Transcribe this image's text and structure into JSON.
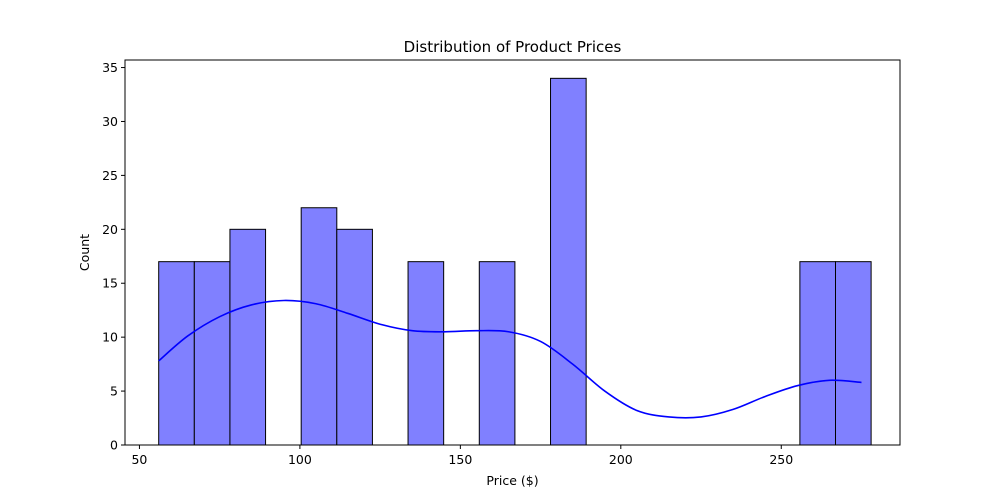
{
  "chart_data": {
    "type": "bar",
    "subtype": "histogram",
    "title": "Distribution of Product Prices",
    "xlabel": "Price ($)",
    "ylabel": "Count",
    "xlim": [
      45.5,
      287
    ],
    "ylim": [
      0,
      35.7
    ],
    "xticks": [
      50,
      100,
      150,
      200,
      250
    ],
    "yticks": [
      0,
      5,
      10,
      15,
      20,
      25,
      30,
      35
    ],
    "grid": false,
    "bins": [
      {
        "x0": 56.0,
        "x1": 67.1,
        "count": 17
      },
      {
        "x0": 67.1,
        "x1": 78.2,
        "count": 17
      },
      {
        "x0": 78.2,
        "x1": 89.3,
        "count": 20
      },
      {
        "x0": 89.3,
        "x1": 100.4,
        "count": 0
      },
      {
        "x0": 100.4,
        "x1": 111.5,
        "count": 22
      },
      {
        "x0": 111.5,
        "x1": 122.6,
        "count": 20
      },
      {
        "x0": 122.6,
        "x1": 133.7,
        "count": 0
      },
      {
        "x0": 133.7,
        "x1": 144.8,
        "count": 17
      },
      {
        "x0": 144.8,
        "x1": 155.9,
        "count": 0
      },
      {
        "x0": 155.9,
        "x1": 167.0,
        "count": 17
      },
      {
        "x0": 167.0,
        "x1": 178.1,
        "count": 0
      },
      {
        "x0": 178.1,
        "x1": 189.2,
        "count": 34
      },
      {
        "x0": 189.2,
        "x1": 200.3,
        "count": 0
      },
      {
        "x0": 200.3,
        "x1": 211.4,
        "count": 0
      },
      {
        "x0": 211.4,
        "x1": 222.5,
        "count": 0
      },
      {
        "x0": 222.5,
        "x1": 233.6,
        "count": 0
      },
      {
        "x0": 233.6,
        "x1": 244.7,
        "count": 0
      },
      {
        "x0": 244.7,
        "x1": 255.8,
        "count": 0
      },
      {
        "x0": 255.8,
        "x1": 266.9,
        "count": 17
      },
      {
        "x0": 266.9,
        "x1": 278.0,
        "count": 17
      }
    ],
    "kde": {
      "x": [
        56,
        65,
        75,
        85,
        95,
        105,
        115,
        125,
        135,
        145,
        155,
        165,
        175,
        185,
        195,
        205,
        215,
        225,
        235,
        245,
        255,
        265,
        275
      ],
      "y": [
        7.8,
        10.1,
        11.9,
        13.0,
        13.4,
        13.1,
        12.2,
        11.2,
        10.6,
        10.5,
        10.6,
        10.5,
        9.6,
        7.5,
        5.0,
        3.2,
        2.6,
        2.6,
        3.3,
        4.5,
        5.5,
        6.0,
        5.8
      ]
    },
    "colors": {
      "bar_fill": "#8080ff",
      "bar_edge": "#000000",
      "kde_line": "#0000ff"
    }
  }
}
